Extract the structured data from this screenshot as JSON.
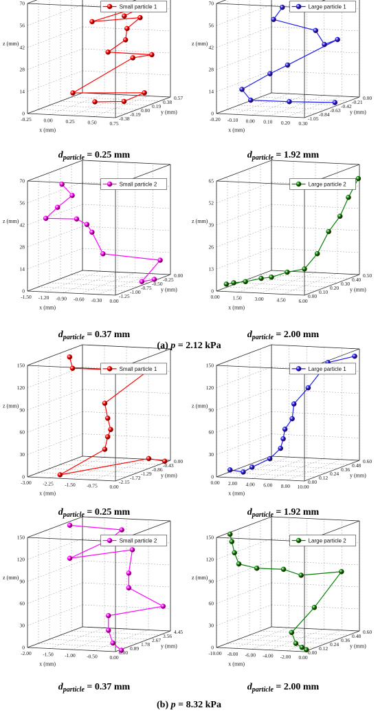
{
  "figure_captions": [
    {
      "prefix": "(a) ",
      "var": "p",
      "suffix": " = 2.12 kPa"
    },
    {
      "prefix": "(b) ",
      "var": "p",
      "suffix": " = 8.32 kPa"
    }
  ],
  "chart_data": [
    {
      "type": "line3d",
      "panel_caption": {
        "symbol": "d",
        "subscript": "particle",
        "value": " = 0.25 mm"
      },
      "legend": "Small particle 1",
      "color": "#ff0000",
      "xlabel": "x (mm)",
      "ylabel": "y (mm)",
      "zlabel": "z (mm)",
      "xlim": [
        -0.25,
        0.75
      ],
      "ylim": [
        -0.38,
        0.57
      ],
      "zlim": [
        0,
        70
      ],
      "xticks": [
        "-0.25",
        "0.00",
        "0.25",
        "0.50",
        "0.75"
      ],
      "yticks": [
        "-0.38",
        "-0.19",
        "0.00",
        "0.19",
        "0.38",
        "0.57"
      ],
      "zticks": [
        "0",
        "14",
        "28",
        "42",
        "56",
        "70"
      ],
      "points": [
        [
          0.2,
          0.1,
          2
        ],
        [
          0.4,
          0.3,
          0
        ],
        [
          0.5,
          0.5,
          3
        ],
        [
          -0.05,
          0.1,
          7
        ],
        [
          0.5,
          0.3,
          28
        ],
        [
          0.65,
          0.4,
          29
        ],
        [
          0.35,
          0.1,
          34
        ],
        [
          0.45,
          0.25,
          40
        ],
        [
          0.5,
          0.2,
          48
        ],
        [
          0.55,
          0.35,
          53
        ],
        [
          0.3,
          -0.1,
          56
        ],
        [
          0.65,
          0.3,
          62
        ],
        [
          0.6,
          0.0,
          59
        ]
      ]
    },
    {
      "type": "line3d",
      "panel_caption": {
        "symbol": "d",
        "subscript": "particle",
        "value": " = 1.92 mm"
      },
      "legend": "Large particle 1",
      "color": "#1c1cf0",
      "xlabel": "x (mm)",
      "ylabel": "y (mm)",
      "zlabel": "z (mm)",
      "xlim": [
        -0.2,
        0.3
      ],
      "ylim": [
        -1.05,
        0.0
      ],
      "zlim": [
        0,
        70
      ],
      "xticks": [
        "-0.20",
        "-0.10",
        "0.00",
        "0.10",
        "0.20",
        "0.30"
      ],
      "yticks": [
        "-1.05",
        "-0.84",
        "-0.63",
        "-0.42",
        "-0.21",
        "0.00"
      ],
      "zticks": [
        "0",
        "14",
        "28",
        "42",
        "56",
        "70"
      ],
      "points": [
        [
          0.25,
          -0.3,
          0
        ],
        [
          0.05,
          -0.5,
          2
        ],
        [
          -0.08,
          -0.8,
          6
        ],
        [
          -0.1,
          -0.9,
          14
        ],
        [
          0.0,
          -0.7,
          22
        ],
        [
          0.1,
          -0.7,
          28
        ],
        [
          0.22,
          -0.15,
          38
        ],
        [
          0.22,
          -0.4,
          38
        ],
        [
          0.2,
          -0.5,
          48
        ],
        [
          0.05,
          -0.8,
          58
        ],
        [
          0.1,
          -0.8,
          66
        ]
      ]
    },
    {
      "type": "line3d",
      "panel_caption": {
        "symbol": "d",
        "subscript": "particle",
        "value": " = 0.37 mm"
      },
      "legend": "Small particle 2",
      "color": "#ff00ff",
      "xlabel": "x (mm)",
      "ylabel": "y (mm)",
      "zlabel": "z (mm)",
      "xlim": [
        -1.5,
        0.0
      ],
      "ylim": [
        -1.25,
        0.0
      ],
      "zlim": [
        0,
        70
      ],
      "xticks": [
        "-1.50",
        "-1.20",
        "-0.90",
        "-0.60",
        "-0.30",
        "0.00"
      ],
      "yticks": [
        "-1.25",
        "-1.00",
        "-0.75",
        "-0.50",
        "-0.25",
        "0.00"
      ],
      "zticks": [
        "0",
        "14",
        "28",
        "42",
        "56",
        "70"
      ],
      "points": [
        [
          -0.05,
          -0.3,
          0
        ],
        [
          -0.15,
          -0.45,
          0
        ],
        [
          -0.1,
          -0.1,
          10
        ],
        [
          -0.4,
          -1.0,
          23
        ],
        [
          -0.55,
          -1.05,
          37
        ],
        [
          -0.75,
          -0.9,
          40
        ],
        [
          -1.0,
          -0.8,
          42
        ],
        [
          -1.3,
          -1.1,
          45
        ],
        [
          -1.25,
          -0.9,
          50
        ],
        [
          -1.0,
          -0.9,
          58
        ],
        [
          -1.1,
          -1.0,
          66
        ]
      ]
    },
    {
      "type": "line3d",
      "panel_caption": {
        "symbol": "d",
        "subscript": "particle",
        "value": " = 2.00 mm"
      },
      "legend": "Large particle 2",
      "color": "#008000",
      "xlabel": "x (mm)",
      "ylabel": "y (mm)",
      "zlabel": "z (mm)",
      "xlim": [
        0.0,
        6.0
      ],
      "ylim": [
        0.0,
        0.5
      ],
      "zlim": [
        0,
        65
      ],
      "xticks": [
        "0.00",
        "1.50",
        "3.00",
        "4.50",
        "6.00"
      ],
      "yticks": [
        "0.00",
        "0.10",
        "0.20",
        "0.30",
        "0.40",
        "0.50"
      ],
      "zticks": [
        "0",
        "13",
        "26",
        "39",
        "52",
        "65"
      ],
      "points": [
        [
          0.3,
          0.05,
          3
        ],
        [
          0.8,
          0.05,
          4
        ],
        [
          1.6,
          0.05,
          5
        ],
        [
          2.3,
          0.1,
          6
        ],
        [
          3.0,
          0.1,
          7
        ],
        [
          3.7,
          0.15,
          9
        ],
        [
          4.5,
          0.2,
          10
        ],
        [
          5.0,
          0.25,
          18
        ],
        [
          5.4,
          0.3,
          30
        ],
        [
          5.8,
          0.35,
          38
        ],
        [
          6.0,
          0.4,
          48
        ],
        [
          6.3,
          0.45,
          58
        ]
      ]
    },
    {
      "type": "line3d",
      "panel_caption": {
        "symbol": "d",
        "subscript": "particle",
        "value": " = 0.25 mm"
      },
      "legend": "Small particle 1",
      "color": "#ff0000",
      "xlabel": "x (mm)",
      "ylabel": "y (mm)",
      "zlabel": "z (mm)",
      "xlim": [
        -3.0,
        0.0
      ],
      "ylim": [
        -2.15,
        0.43
      ],
      "zlim": [
        0,
        150
      ],
      "xticks": [
        "-3.00",
        "-2.25",
        "-1.50",
        "-0.75",
        "0.00"
      ],
      "yticks": [
        "-2.15",
        "-1.72",
        "-1.29",
        "-0.86",
        "-0.43",
        "0.00"
      ],
      "zticks": [
        "0",
        "30",
        "60",
        "90",
        "120",
        "150"
      ],
      "points": [
        [
          -0.1,
          0.3,
          0
        ],
        [
          -0.5,
          0.1,
          5
        ],
        [
          -2.0,
          -2.0,
          3
        ],
        [
          -1.2,
          -1.0,
          28
        ],
        [
          -1.1,
          -1.0,
          45
        ],
        [
          -1.0,
          -1.0,
          55
        ],
        [
          -1.1,
          -1.0,
          70
        ],
        [
          -1.2,
          -1.0,
          90
        ],
        [
          -0.1,
          -0.5,
          130
        ],
        [
          -2.3,
          -1.0,
          135
        ],
        [
          -2.4,
          -1.0,
          150
        ]
      ]
    },
    {
      "type": "line3d",
      "panel_caption": {
        "symbol": "d",
        "subscript": "particle",
        "value": " = 1.92 mm"
      },
      "legend": "Large particle 1",
      "color": "#1c1cf0",
      "xlabel": "x (mm)",
      "ylabel": "y (mm)",
      "zlabel": "z (mm)",
      "xlim": [
        0.0,
        10.0
      ],
      "ylim": [
        0.0,
        0.6
      ],
      "zlim": [
        0,
        150
      ],
      "xticks": [
        "0.00",
        "2.00",
        "4.00",
        "6.00",
        "8.00",
        "10.00"
      ],
      "yticks": [
        "0.00",
        "0.12",
        "0.24",
        "0.36",
        "0.48",
        "0.60"
      ],
      "zticks": [
        "0",
        "30",
        "60",
        "90",
        "120",
        "150"
      ],
      "points": [
        [
          0.5,
          0.1,
          5
        ],
        [
          2.0,
          0.1,
          3
        ],
        [
          3.0,
          0.1,
          10
        ],
        [
          4.5,
          0.15,
          20
        ],
        [
          5.2,
          0.2,
          32
        ],
        [
          5.5,
          0.2,
          45
        ],
        [
          5.7,
          0.2,
          58
        ],
        [
          6.0,
          0.25,
          70
        ],
        [
          6.2,
          0.25,
          90
        ],
        [
          7.3,
          0.3,
          110
        ],
        [
          8.5,
          0.4,
          140
        ],
        [
          10.5,
          0.5,
          145
        ]
      ]
    },
    {
      "type": "line3d",
      "panel_caption": {
        "symbol": "d",
        "subscript": "particle",
        "value": " = 0.37 mm"
      },
      "legend": "Small particle 2",
      "color": "#ff00ff",
      "xlabel": "x (mm)",
      "ylabel": "y (mm)",
      "zlabel": "z (mm)",
      "xlim": [
        -2.0,
        0.0
      ],
      "ylim": [
        0.0,
        4.45
      ],
      "zlim": [
        0,
        150
      ],
      "xticks": [
        "-2.00",
        "-1.50",
        "-1.00",
        "-0.50",
        "0.00"
      ],
      "yticks": [
        "0.00",
        "0.89",
        "1.78",
        "2.67",
        "3.56",
        "4.45"
      ],
      "zticks": [
        "0",
        "30",
        "60",
        "90",
        "120",
        "150"
      ],
      "points": [
        [
          0.05,
          0.3,
          0
        ],
        [
          -0.2,
          0.5,
          8
        ],
        [
          -0.3,
          0.5,
          25
        ],
        [
          -0.3,
          0.5,
          45
        ],
        [
          0.1,
          3.5,
          40
        ],
        [
          -0.4,
          2.5,
          70
        ],
        [
          -0.4,
          2.5,
          90
        ],
        [
          -0.6,
          3.5,
          115
        ],
        [
          -1.6,
          2.0,
          110
        ],
        [
          -1.0,
          3.0,
          130
        ],
        [
          -0.7,
          3.0,
          145
        ],
        [
          -1.6,
          2.0,
          155
        ]
      ]
    },
    {
      "type": "line3d",
      "panel_caption": {
        "symbol": "d",
        "subscript": "particle",
        "value": " = 2.00 mm"
      },
      "legend": "Large particle 2",
      "color": "#008000",
      "xlabel": "x (mm)",
      "ylabel": "y (mm)",
      "zlabel": "z (mm)",
      "xlim": [
        -10.0,
        0.0
      ],
      "ylim": [
        0.0,
        0.6
      ],
      "zlim": [
        0,
        150
      ],
      "xticks": [
        "-10.00",
        "-8.00",
        "-6.00",
        "-4.00",
        "-2.00",
        "0.00"
      ],
      "yticks": [
        "0.00",
        "0.12",
        "0.24",
        "0.36",
        "0.48",
        "0.60"
      ],
      "zticks": [
        "0",
        "30",
        "60",
        "90",
        "120",
        "150"
      ],
      "points": [
        [
          -0.3,
          0.05,
          0
        ],
        [
          -0.8,
          0.05,
          3
        ],
        [
          -1.5,
          0.05,
          8
        ],
        [
          -2.5,
          0.1,
          20
        ],
        [
          -2.0,
          0.3,
          45
        ],
        [
          -1.0,
          0.5,
          85
        ],
        [
          -3.5,
          0.3,
          88
        ],
        [
          -5.5,
          0.3,
          95
        ],
        [
          -7.5,
          0.2,
          100
        ],
        [
          -8.5,
          0.1,
          110
        ],
        [
          -9.0,
          0.1,
          125
        ],
        [
          -9.3,
          0.1,
          140
        ],
        [
          -9.5,
          0.1,
          150
        ]
      ]
    }
  ]
}
